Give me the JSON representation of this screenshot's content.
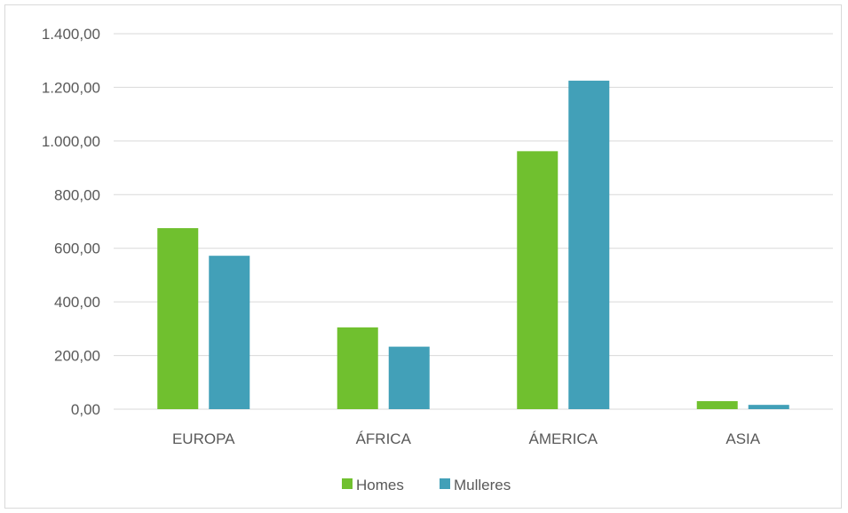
{
  "chart_data": {
    "type": "bar",
    "categories": [
      "EUROPA",
      "ÁFRICA",
      "ÁMERICA",
      "ASIA"
    ],
    "series": [
      {
        "name": "Homes",
        "color": "#70c02f",
        "values": [
          675,
          305,
          962,
          30
        ]
      },
      {
        "name": "Mulleres",
        "color": "#42a0b8",
        "values": [
          572,
          233,
          1225,
          16
        ]
      }
    ],
    "ylim": [
      0,
      1400
    ],
    "yticks": [
      0,
      200,
      400,
      600,
      800,
      1000,
      1200,
      1400
    ],
    "ytick_labels": [
      "0,00",
      "200,00",
      "400,00",
      "600,00",
      "800,00",
      "1.000,00",
      "1.200,00",
      "1.400,00"
    ],
    "grid": true,
    "legend_position": "bottom",
    "gridline_color": "#d9d9d9"
  }
}
